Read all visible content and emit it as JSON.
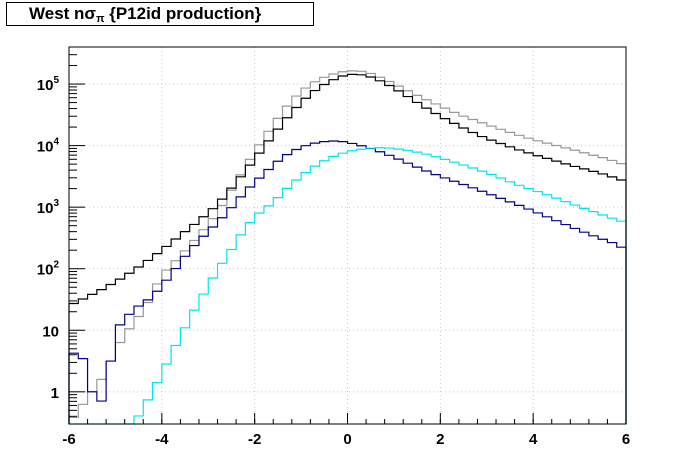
{
  "title": {
    "prefix": "West n",
    "sigma": "σ",
    "sub": "π",
    "suffix": " {P12id production}"
  },
  "chart_data": {
    "type": "line",
    "title": "West nσπ {P12id production}",
    "xlabel": "",
    "ylabel": "",
    "xlim": [
      -6,
      6
    ],
    "ylim": [
      0.3,
      400000
    ],
    "yscale": "log",
    "grid": true,
    "x_ticks": [
      "-6",
      "-4",
      "-2",
      "0",
      "2",
      "4",
      "6"
    ],
    "y_ticks": [
      {
        "base": "1",
        "exp": ""
      },
      {
        "base": "10",
        "exp": ""
      },
      {
        "base": "10",
        "exp": "2"
      },
      {
        "base": "10",
        "exp": "3"
      },
      {
        "base": "10",
        "exp": "4"
      },
      {
        "base": "10",
        "exp": "5"
      }
    ],
    "bin_width": 0.2,
    "series": [
      {
        "color": "#999999",
        "kind": "gray",
        "points": [
          [
            -6,
            0.3
          ],
          [
            -5.6,
            0.8
          ],
          [
            -5.2,
            2
          ],
          [
            -5,
            5
          ],
          [
            -4.8,
            8
          ],
          [
            -4.6,
            14
          ],
          [
            -4.4,
            20
          ],
          [
            -4.2,
            40
          ],
          [
            -4,
            80
          ],
          [
            -3.6,
            160
          ],
          [
            -3.2,
            350
          ],
          [
            -2.8,
            800
          ],
          [
            -2.4,
            2500
          ],
          [
            -2,
            8000
          ],
          [
            -1.6,
            22000
          ],
          [
            -1.2,
            55000
          ],
          [
            -0.8,
            100000
          ],
          [
            -0.4,
            140000
          ],
          [
            0,
            165000
          ],
          [
            0.4,
            160000
          ],
          [
            0.8,
            120000
          ],
          [
            1.2,
            85000
          ],
          [
            1.6,
            60000
          ],
          [
            2,
            44000
          ],
          [
            2.4,
            32000
          ],
          [
            2.8,
            25000
          ],
          [
            3.2,
            19500
          ],
          [
            3.6,
            15500
          ],
          [
            4,
            12500
          ],
          [
            4.4,
            10500
          ],
          [
            4.8,
            8800
          ],
          [
            5.2,
            7300
          ],
          [
            5.6,
            6100
          ],
          [
            6,
            4800
          ]
        ]
      },
      {
        "color": "#000000",
        "kind": "black",
        "points": [
          [
            -6,
            25
          ],
          [
            -5.6,
            35
          ],
          [
            -5.2,
            50
          ],
          [
            -4.8,
            75
          ],
          [
            -4.4,
            120
          ],
          [
            -4,
            200
          ],
          [
            -3.6,
            350
          ],
          [
            -3.2,
            600
          ],
          [
            -2.8,
            1100
          ],
          [
            -2.4,
            2500
          ],
          [
            -2,
            6000
          ],
          [
            -1.6,
            15000
          ],
          [
            -1.2,
            35000
          ],
          [
            -0.8,
            70000
          ],
          [
            -0.4,
            110000
          ],
          [
            0,
            145000
          ],
          [
            0.4,
            140000
          ],
          [
            0.8,
            105000
          ],
          [
            1.2,
            70000
          ],
          [
            1.6,
            45000
          ],
          [
            2,
            30000
          ],
          [
            2.4,
            21000
          ],
          [
            2.8,
            15000
          ],
          [
            3.2,
            11500
          ],
          [
            3.6,
            9000
          ],
          [
            4,
            7200
          ],
          [
            4.4,
            5900
          ],
          [
            4.8,
            4800
          ],
          [
            5.2,
            4000
          ],
          [
            5.6,
            3300
          ],
          [
            6,
            2600
          ]
        ]
      },
      {
        "color": "#00008b",
        "kind": "navy",
        "points": [
          [
            -6,
            3
          ],
          [
            -5.8,
            6
          ],
          [
            -5.6,
            2
          ],
          [
            -5.4,
            0.5
          ],
          [
            -5.2,
            1
          ],
          [
            -5,
            10
          ],
          [
            -4.8,
            15
          ],
          [
            -4.6,
            22
          ],
          [
            -4.2,
            35
          ],
          [
            -3.8,
            80
          ],
          [
            -3.4,
            200
          ],
          [
            -3,
            400
          ],
          [
            -2.6,
            800
          ],
          [
            -2.2,
            1800
          ],
          [
            -1.8,
            3500
          ],
          [
            -1.4,
            6500
          ],
          [
            -1,
            9500
          ],
          [
            -0.6,
            11500
          ],
          [
            -0.2,
            12000
          ],
          [
            0.2,
            10500
          ],
          [
            0.6,
            8500
          ],
          [
            1,
            6500
          ],
          [
            1.4,
            4800
          ],
          [
            1.8,
            3600
          ],
          [
            2.2,
            2800
          ],
          [
            2.6,
            2200
          ],
          [
            3,
            1700
          ],
          [
            3.4,
            1300
          ],
          [
            3.8,
            1000
          ],
          [
            4.2,
            750
          ],
          [
            4.6,
            560
          ],
          [
            5,
            420
          ],
          [
            5.4,
            320
          ],
          [
            5.8,
            250
          ],
          [
            6,
            200
          ]
        ]
      },
      {
        "color": "#00e5ee",
        "kind": "cyan",
        "points": [
          [
            -6,
            0.3
          ],
          [
            -4.6,
            0.3
          ],
          [
            -4.2,
            1
          ],
          [
            -4,
            2
          ],
          [
            -3.8,
            4
          ],
          [
            -3.6,
            8
          ],
          [
            -3.4,
            15
          ],
          [
            -3.2,
            30
          ],
          [
            -3,
            50
          ],
          [
            -2.8,
            100
          ],
          [
            -2.6,
            150
          ],
          [
            -2.4,
            280
          ],
          [
            -2.2,
            450
          ],
          [
            -2,
            700
          ],
          [
            -1.6,
            1200
          ],
          [
            -1.2,
            2400
          ],
          [
            -0.8,
            4200
          ],
          [
            -0.4,
            6300
          ],
          [
            0,
            8000
          ],
          [
            0.4,
            9000
          ],
          [
            0.8,
            9300
          ],
          [
            1.2,
            8600
          ],
          [
            1.6,
            7600
          ],
          [
            2,
            6300
          ],
          [
            2.4,
            5100
          ],
          [
            2.8,
            4100
          ],
          [
            3.2,
            3200
          ],
          [
            3.6,
            2400
          ],
          [
            4,
            1900
          ],
          [
            4.4,
            1500
          ],
          [
            4.8,
            1150
          ],
          [
            5.2,
            900
          ],
          [
            5.6,
            700
          ],
          [
            6,
            560
          ]
        ]
      }
    ]
  }
}
